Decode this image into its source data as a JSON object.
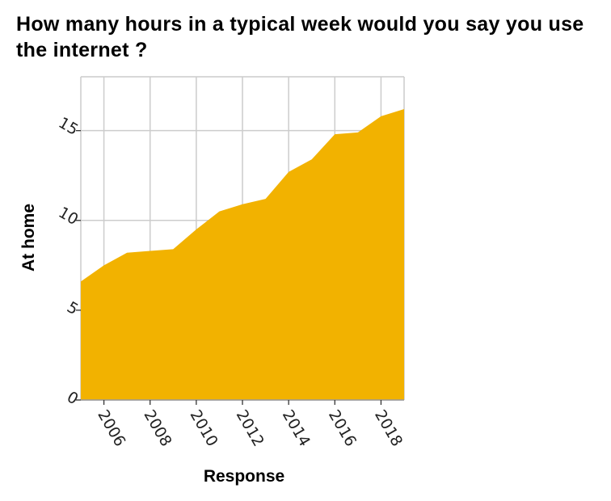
{
  "chart_data": {
    "type": "area",
    "title": "How many hours in a typical week would you say you use the internet ?",
    "xlabel": "Response",
    "ylabel": "At home",
    "xlim": [
      2005,
      2019
    ],
    "ylim": [
      0,
      18
    ],
    "x_ticks": [
      "2006",
      "2008",
      "2010",
      "2012",
      "2014",
      "2016",
      "2018"
    ],
    "y_ticks": [
      "0",
      "5",
      "10",
      "15"
    ],
    "grid": true,
    "color": "#f2b200",
    "x": [
      2005,
      2006,
      2007,
      2008,
      2009,
      2010,
      2011,
      2012,
      2013,
      2014,
      2015,
      2016,
      2017,
      2018,
      2019
    ],
    "values": [
      6.6,
      7.5,
      8.2,
      8.3,
      8.4,
      9.5,
      10.5,
      10.9,
      11.2,
      12.7,
      13.4,
      14.8,
      14.9,
      15.8,
      16.2
    ]
  }
}
